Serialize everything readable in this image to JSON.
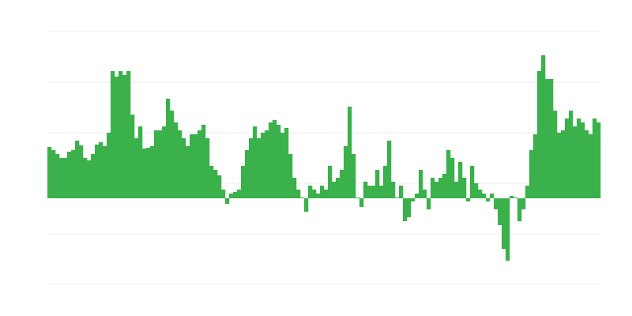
{
  "chart_data": {
    "type": "bar",
    "title": "",
    "xlabel": "",
    "ylabel": "",
    "grid": true,
    "ylim": [
      -109,
      211
    ],
    "gridlines": [
      -109,
      -45,
      19,
      83,
      147,
      211
    ],
    "bar_color": "#3ab14b",
    "grid_color": "#ebebeb",
    "values": [
      65,
      61,
      56,
      51,
      51,
      59,
      61,
      73,
      67,
      51,
      48,
      56,
      68,
      71,
      66,
      83,
      161,
      154,
      161,
      156,
      161,
      106,
      76,
      91,
      63,
      64,
      66,
      86,
      86,
      91,
      126,
      111,
      96,
      86,
      76,
      66,
      81,
      81,
      86,
      93,
      76,
      41,
      36,
      29,
      11,
      -7,
      6,
      8,
      11,
      41,
      61,
      76,
      91,
      76,
      83,
      86,
      96,
      99,
      93,
      83,
      89,
      56,
      26,
      11,
      1,
      -17,
      16,
      11,
      6,
      16,
      11,
      41,
      21,
      26,
      36,
      66,
      116,
      56,
      1,
      -11,
      21,
      16,
      16,
      36,
      16,
      41,
      73,
      21,
      1,
      16,
      -29,
      -24,
      -4,
      6,
      36,
      11,
      -14,
      26,
      21,
      26,
      31,
      61,
      51,
      21,
      46,
      26,
      -4,
      41,
      19,
      11,
      6,
      -4,
      6,
      -14,
      -34,
      -64,
      -79,
      3,
      1,
      -29,
      -14,
      16,
      61,
      81,
      161,
      181,
      151,
      151,
      111,
      83,
      86,
      101,
      111,
      91,
      101,
      96,
      86,
      81,
      101,
      96
    ]
  }
}
